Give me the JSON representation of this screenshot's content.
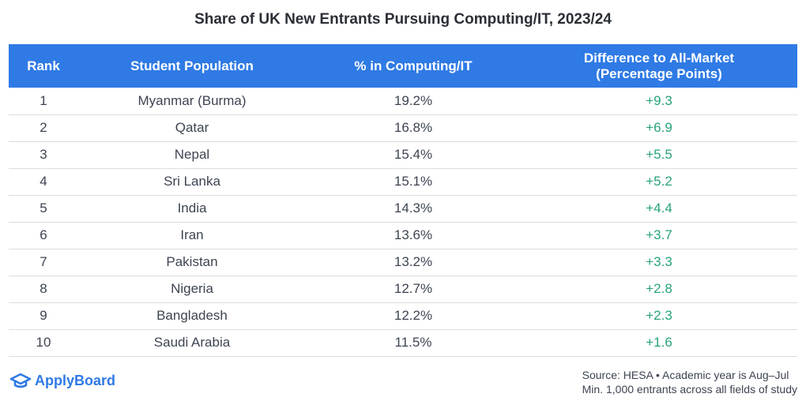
{
  "chart_data": {
    "type": "table",
    "title": "Share of UK New Entrants Pursuing Computing/IT, 2023/24",
    "columns": [
      "Rank",
      "Student Population",
      "% in Computing/IT",
      "Difference to All-Market (Percentage Points)"
    ],
    "rows": [
      {
        "rank": "1",
        "population": "Myanmar (Burma)",
        "pct": "19.2%",
        "diff": "+9.3"
      },
      {
        "rank": "2",
        "population": "Qatar",
        "pct": "16.8%",
        "diff": "+6.9"
      },
      {
        "rank": "3",
        "population": "Nepal",
        "pct": "15.4%",
        "diff": "+5.5"
      },
      {
        "rank": "4",
        "population": "Sri Lanka",
        "pct": "15.1%",
        "diff": "+5.2"
      },
      {
        "rank": "5",
        "population": "India",
        "pct": "14.3%",
        "diff": "+4.4"
      },
      {
        "rank": "6",
        "population": "Iran",
        "pct": "13.6%",
        "diff": "+3.7"
      },
      {
        "rank": "7",
        "population": "Pakistan",
        "pct": "13.2%",
        "diff": "+3.3"
      },
      {
        "rank": "8",
        "population": "Nigeria",
        "pct": "12.7%",
        "diff": "+2.8"
      },
      {
        "rank": "9",
        "population": "Bangladesh",
        "pct": "12.2%",
        "diff": "+2.3"
      },
      {
        "rank": "10",
        "population": "Saudi Arabia",
        "pct": "11.5%",
        "diff": "+1.6"
      }
    ]
  },
  "header": {
    "col1": "Rank",
    "col2": "Student Population",
    "col3": "% in Computing/IT",
    "col4_line1": "Difference to All-Market",
    "col4_line2": "(Percentage Points)"
  },
  "footer": {
    "logo_text": "ApplyBoard",
    "source_line1": "Source: HESA • Academic year is Aug–Jul",
    "source_line2": "Min. 1,000 entrants across all fields of study"
  },
  "colors": {
    "header_bg": "#2f7ae5",
    "positive": "#27a37a",
    "brand": "#2f7ae5"
  }
}
